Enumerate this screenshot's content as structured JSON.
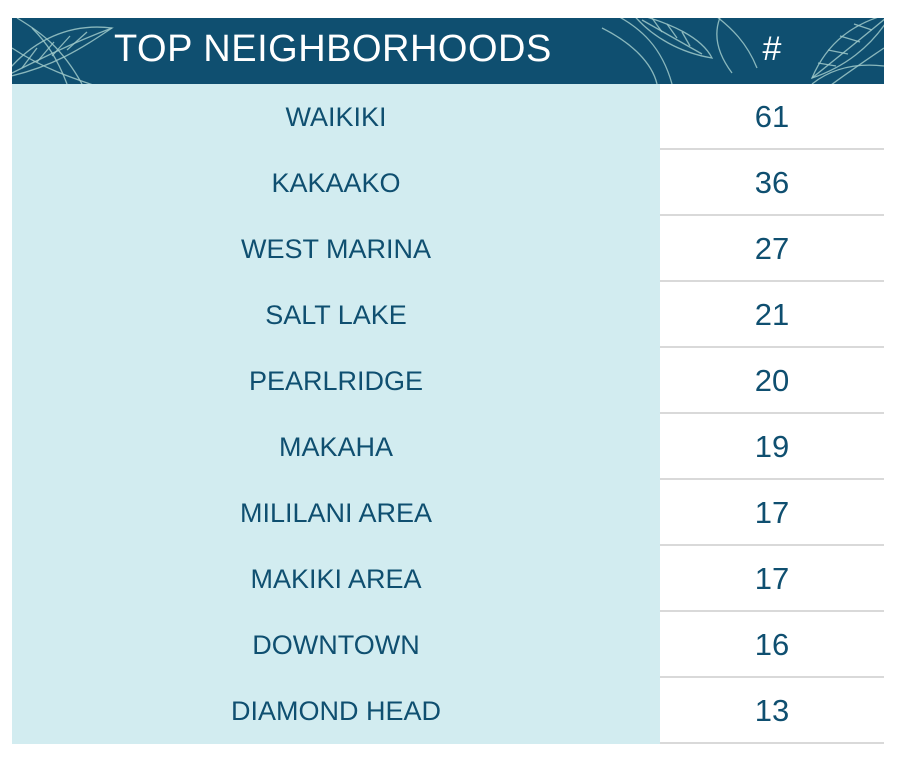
{
  "table": {
    "title": "TOP NEIGHBORHOODS",
    "count_header": "#",
    "accent_color": "#0f4f70",
    "row_fill_color": "#d2ecf0",
    "decoration_icon": "tropical-leaf-icon",
    "rows": [
      {
        "name": "WAIKIKI",
        "count": "61"
      },
      {
        "name": "KAKAAKO",
        "count": "36"
      },
      {
        "name": "WEST MARINA",
        "count": "27"
      },
      {
        "name": "SALT LAKE",
        "count": "21"
      },
      {
        "name": "PEARLRIDGE",
        "count": "20"
      },
      {
        "name": "MAKAHA",
        "count": "19"
      },
      {
        "name": "MILILANI AREA",
        "count": "17"
      },
      {
        "name": "MAKIKI AREA",
        "count": "17"
      },
      {
        "name": "DOWNTOWN",
        "count": "16"
      },
      {
        "name": "DIAMOND HEAD",
        "count": "13"
      }
    ]
  }
}
